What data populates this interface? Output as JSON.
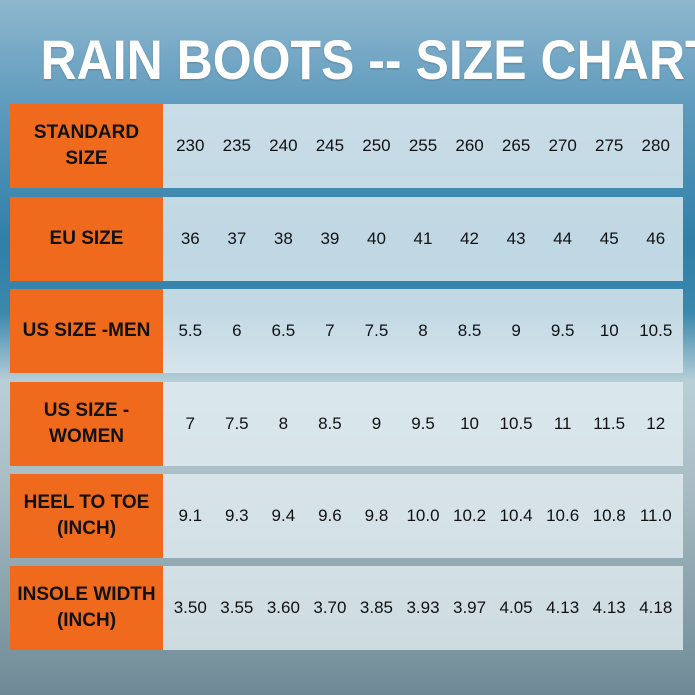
{
  "title": "RAIN BOOTS -- SIZE CHART",
  "rows": [
    {
      "label": "STANDARD SIZE",
      "values": [
        "230",
        "235",
        "240",
        "245",
        "250",
        "255",
        "260",
        "265",
        "270",
        "275",
        "280"
      ]
    },
    {
      "label": "EU SIZE",
      "values": [
        "36",
        "37",
        "38",
        "39",
        "40",
        "41",
        "42",
        "43",
        "44",
        "45",
        "46"
      ]
    },
    {
      "label": "US SIZE -MEN",
      "values": [
        "5.5",
        "6",
        "6.5",
        "7",
        "7.5",
        "8",
        "8.5",
        "9",
        "9.5",
        "10",
        "10.5"
      ]
    },
    {
      "label": "US SIZE -WOMEN",
      "values": [
        "7",
        "7.5",
        "8",
        "8.5",
        "9",
        "9.5",
        "10",
        "10.5",
        "11",
        "11.5",
        "12"
      ]
    },
    {
      "label": "HEEL TO TOE (INCH)",
      "values": [
        "9.1",
        "9.3",
        "9.4",
        "9.6",
        "9.8",
        "10.0",
        "10.2",
        "10.4",
        "10.6",
        "10.8",
        "11.0"
      ]
    },
    {
      "label": "INSOLE WIDTH (INCH)",
      "values": [
        "3.50",
        "3.55",
        "3.60",
        "3.70",
        "3.85",
        "3.93",
        "3.97",
        "4.05",
        "4.13",
        "4.13",
        "4.18"
      ]
    }
  ],
  "colors": {
    "label_bg": "#ef6a1d",
    "title": "#ffffff"
  }
}
